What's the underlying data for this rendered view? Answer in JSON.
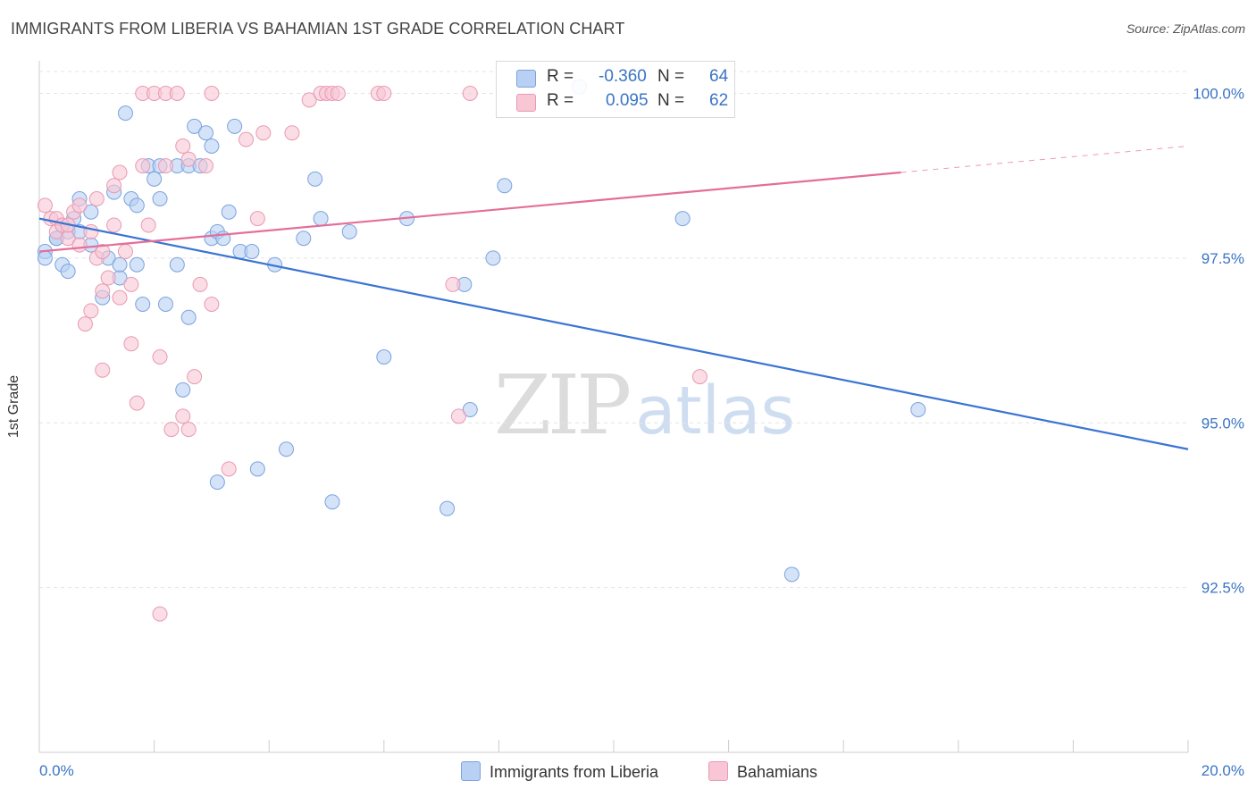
{
  "title": "IMMIGRANTS FROM LIBERIA VS BAHAMIAN 1ST GRADE CORRELATION CHART",
  "source": "Source: ZipAtlas.com",
  "watermark": {
    "zip": "ZIP",
    "atlas": "atlas"
  },
  "legend": {
    "rows": [
      {
        "r_label": "R =",
        "r_value": "-0.360",
        "n_label": "N =",
        "n_value": "64"
      },
      {
        "r_label": "R =",
        "r_value": "0.095",
        "n_label": "N =",
        "n_value": "62"
      }
    ]
  },
  "bottom_legend": [
    "Immigrants from Liberia",
    "Bahamians"
  ],
  "colors": {
    "blue_fill": "#b7d0f3",
    "blue_stroke": "#7ba3de",
    "blue_line": "#3a74d4",
    "pink_fill": "#f8c6d5",
    "pink_stroke": "#e99ab4",
    "pink_line": "#e46e9a",
    "tick_text": "#3a74c4",
    "grid": "#e4e4e4"
  },
  "chart_data": {
    "type": "scatter",
    "title": "IMMIGRANTS FROM LIBERIA VS BAHAMIAN 1ST GRADE CORRELATION CHART",
    "xlabel": "",
    "ylabel": "1st Grade",
    "xlim": [
      0,
      20
    ],
    "ylim": [
      90.0,
      100.4
    ],
    "x_tick_labels": [
      "0.0%",
      "20.0%"
    ],
    "y_ticks": [
      92.5,
      95.0,
      97.5,
      100.0
    ],
    "y_tick_labels": [
      "92.5%",
      "95.0%",
      "97.5%",
      "100.0%"
    ],
    "grid": true,
    "series": [
      {
        "name": "Immigrants from Liberia",
        "color": "blue",
        "r": "-0.360",
        "n": "64",
        "trend": {
          "x": [
            0,
            20
          ],
          "y": [
            98.1,
            94.6
          ]
        },
        "points": [
          [
            0.1,
            97.6
          ],
          [
            0.1,
            97.5
          ],
          [
            0.3,
            97.8
          ],
          [
            0.4,
            97.4
          ],
          [
            0.4,
            98.0
          ],
          [
            0.5,
            97.9
          ],
          [
            0.5,
            97.3
          ],
          [
            0.6,
            98.1
          ],
          [
            0.7,
            98.4
          ],
          [
            0.7,
            97.9
          ],
          [
            0.9,
            97.7
          ],
          [
            0.9,
            98.2
          ],
          [
            1.1,
            96.9
          ],
          [
            1.2,
            97.5
          ],
          [
            1.3,
            98.5
          ],
          [
            1.4,
            97.2
          ],
          [
            1.4,
            97.4
          ],
          [
            1.5,
            99.7
          ],
          [
            1.6,
            98.4
          ],
          [
            1.7,
            97.4
          ],
          [
            1.7,
            98.3
          ],
          [
            1.8,
            96.8
          ],
          [
            1.9,
            98.9
          ],
          [
            2.0,
            98.7
          ],
          [
            2.1,
            98.9
          ],
          [
            2.1,
            98.4
          ],
          [
            2.2,
            96.8
          ],
          [
            2.4,
            98.9
          ],
          [
            2.4,
            97.4
          ],
          [
            2.5,
            95.5
          ],
          [
            2.6,
            98.9
          ],
          [
            2.6,
            96.6
          ],
          [
            2.7,
            99.5
          ],
          [
            2.8,
            98.9
          ],
          [
            2.9,
            99.4
          ],
          [
            3.0,
            99.2
          ],
          [
            3.0,
            97.8
          ],
          [
            3.1,
            97.9
          ],
          [
            3.2,
            97.8
          ],
          [
            3.1,
            94.1
          ],
          [
            3.3,
            98.2
          ],
          [
            3.4,
            99.5
          ],
          [
            3.5,
            97.6
          ],
          [
            3.7,
            97.6
          ],
          [
            3.8,
            94.3
          ],
          [
            4.1,
            97.4
          ],
          [
            4.3,
            94.6
          ],
          [
            4.6,
            97.8
          ],
          [
            4.8,
            98.7
          ],
          [
            4.9,
            98.1
          ],
          [
            5.1,
            93.8
          ],
          [
            5.4,
            97.9
          ],
          [
            6.0,
            96.0
          ],
          [
            6.4,
            98.1
          ],
          [
            7.1,
            93.7
          ],
          [
            7.4,
            97.1
          ],
          [
            7.5,
            95.2
          ],
          [
            7.9,
            97.5
          ],
          [
            8.1,
            98.6
          ],
          [
            9.4,
            100.1
          ],
          [
            11.2,
            98.1
          ],
          [
            13.1,
            92.7
          ],
          [
            15.3,
            95.2
          ],
          [
            0.3,
            97.8
          ]
        ]
      },
      {
        "name": "Bahamians",
        "color": "pink",
        "r": "0.095",
        "n": "62",
        "trend": {
          "x": [
            0,
            15.0
          ],
          "y": [
            97.6,
            98.8
          ]
        },
        "points": [
          [
            0.1,
            98.3
          ],
          [
            0.2,
            98.1
          ],
          [
            0.3,
            98.1
          ],
          [
            0.3,
            97.9
          ],
          [
            0.4,
            98.0
          ],
          [
            0.5,
            97.8
          ],
          [
            0.6,
            98.2
          ],
          [
            0.7,
            97.7
          ],
          [
            0.7,
            98.3
          ],
          [
            0.8,
            96.5
          ],
          [
            0.9,
            96.7
          ],
          [
            0.9,
            97.9
          ],
          [
            1.0,
            98.4
          ],
          [
            1.0,
            97.5
          ],
          [
            1.1,
            97.0
          ],
          [
            1.1,
            95.8
          ],
          [
            1.2,
            97.2
          ],
          [
            1.3,
            98.6
          ],
          [
            1.4,
            96.9
          ],
          [
            1.4,
            98.8
          ],
          [
            1.5,
            97.6
          ],
          [
            1.6,
            97.1
          ],
          [
            1.6,
            96.2
          ],
          [
            1.7,
            95.3
          ],
          [
            1.8,
            98.9
          ],
          [
            1.8,
            100.0
          ],
          [
            1.9,
            98.0
          ],
          [
            2.0,
            100.0
          ],
          [
            2.1,
            96.0
          ],
          [
            2.2,
            100.0
          ],
          [
            2.2,
            98.9
          ],
          [
            2.3,
            94.9
          ],
          [
            2.4,
            100.0
          ],
          [
            2.5,
            95.1
          ],
          [
            2.5,
            99.2
          ],
          [
            2.6,
            99.0
          ],
          [
            2.6,
            94.9
          ],
          [
            2.7,
            95.7
          ],
          [
            2.8,
            97.1
          ],
          [
            2.9,
            98.9
          ],
          [
            3.0,
            96.8
          ],
          [
            3.0,
            100.0
          ],
          [
            3.3,
            94.3
          ],
          [
            3.6,
            99.3
          ],
          [
            3.8,
            98.1
          ],
          [
            3.9,
            99.4
          ],
          [
            4.4,
            99.4
          ],
          [
            4.7,
            99.9
          ],
          [
            4.9,
            100.0
          ],
          [
            5.0,
            100.0
          ],
          [
            5.1,
            100.0
          ],
          [
            5.2,
            100.0
          ],
          [
            5.9,
            100.0
          ],
          [
            6.0,
            100.0
          ],
          [
            7.2,
            97.1
          ],
          [
            7.3,
            95.1
          ],
          [
            7.5,
            100.0
          ],
          [
            11.5,
            95.7
          ],
          [
            2.1,
            92.1
          ],
          [
            1.1,
            97.6
          ],
          [
            0.5,
            98.0
          ],
          [
            1.3,
            98.0
          ]
        ]
      }
    ]
  }
}
